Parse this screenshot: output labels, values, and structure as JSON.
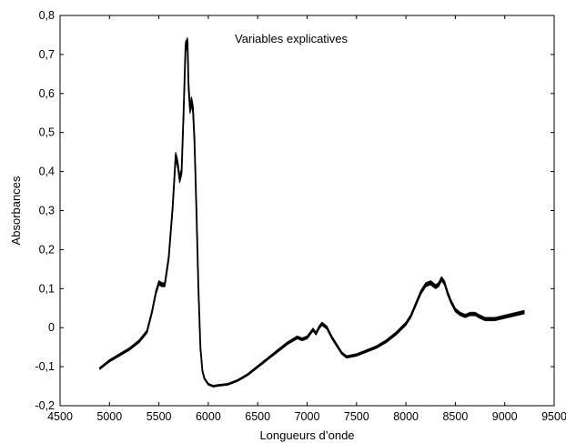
{
  "chart_data": {
    "type": "line",
    "title": "",
    "annotation": "Variables explicatives",
    "xlabel": "Longueurs d’onde",
    "ylabel": "Absorbances",
    "xlim": [
      4500,
      9500
    ],
    "ylim": [
      -0.2,
      0.8
    ],
    "xticks": [
      4500,
      5000,
      5500,
      6000,
      6500,
      7000,
      7500,
      8000,
      8500,
      9000,
      9500
    ],
    "xtick_labels": [
      "4500",
      "5000",
      "5500",
      "6000",
      "6500",
      "7000",
      "7500",
      "8000",
      "8500",
      "9000",
      "9500"
    ],
    "yticks": [
      -0.2,
      -0.1,
      0,
      0.1,
      0.2,
      0.3,
      0.4,
      0.5,
      0.6,
      0.7,
      0.8
    ],
    "ytick_labels": [
      "-0,2",
      "-0,1",
      "0",
      "0,1",
      "0,2",
      "0,3",
      "0,4",
      "0,5",
      "0,6",
      "0,7",
      "0,8"
    ],
    "grid": false,
    "line_color": "#000000",
    "series_count": 12,
    "x": [
      4900,
      4950,
      5000,
      5100,
      5200,
      5300,
      5380,
      5430,
      5470,
      5500,
      5530,
      5560,
      5600,
      5640,
      5670,
      5690,
      5710,
      5730,
      5750,
      5770,
      5790,
      5800,
      5815,
      5830,
      5845,
      5860,
      5880,
      5900,
      5920,
      5940,
      5960,
      6000,
      6050,
      6100,
      6200,
      6300,
      6400,
      6500,
      6600,
      6700,
      6800,
      6900,
      6950,
      7000,
      7030,
      7060,
      7090,
      7120,
      7150,
      7200,
      7250,
      7300,
      7350,
      7400,
      7500,
      7600,
      7700,
      7800,
      7900,
      8000,
      8050,
      8100,
      8150,
      8200,
      8250,
      8300,
      8330,
      8360,
      8390,
      8420,
      8450,
      8500,
      8550,
      8600,
      8650,
      8700,
      8750,
      8800,
      8900,
      9000,
      9100,
      9200
    ],
    "y": [
      -0.105,
      -0.095,
      -0.085,
      -0.07,
      -0.055,
      -0.035,
      -0.01,
      0.04,
      0.09,
      0.115,
      0.11,
      0.11,
      0.18,
      0.31,
      0.44,
      0.42,
      0.38,
      0.4,
      0.55,
      0.72,
      0.73,
      0.62,
      0.56,
      0.58,
      0.56,
      0.48,
      0.3,
      0.1,
      -0.05,
      -0.11,
      -0.13,
      -0.145,
      -0.15,
      -0.148,
      -0.145,
      -0.135,
      -0.12,
      -0.1,
      -0.08,
      -0.06,
      -0.04,
      -0.025,
      -0.03,
      -0.025,
      -0.015,
      -0.005,
      -0.015,
      0.0,
      0.01,
      0.0,
      -0.025,
      -0.045,
      -0.065,
      -0.075,
      -0.07,
      -0.06,
      -0.05,
      -0.035,
      -0.015,
      0.01,
      0.03,
      0.06,
      0.09,
      0.11,
      0.115,
      0.105,
      0.11,
      0.125,
      0.115,
      0.09,
      0.07,
      0.045,
      0.035,
      0.03,
      0.035,
      0.035,
      0.028,
      0.022,
      0.022,
      0.028,
      0.034,
      0.04
    ]
  }
}
